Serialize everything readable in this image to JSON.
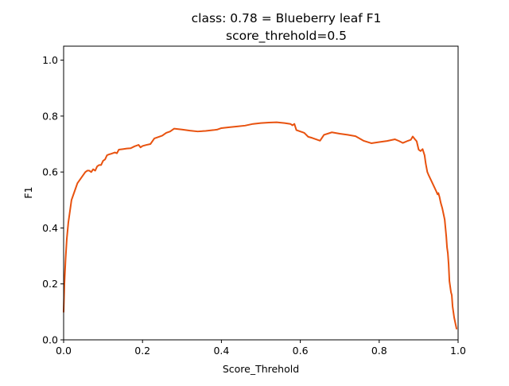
{
  "chart_data": {
    "type": "line",
    "title": "class: 0.78 = Blueberry leaf F1",
    "subtitle": "score_threhold=0.5",
    "xlabel": "Score_Threhold",
    "ylabel": "F1",
    "xlim": [
      0.0,
      1.0
    ],
    "ylim": [
      0.0,
      1.05
    ],
    "xticks": [
      "0.0",
      "0.2",
      "0.4",
      "0.6",
      "0.8",
      "1.0"
    ],
    "yticks": [
      "0.0",
      "0.2",
      "0.4",
      "0.6",
      "0.8",
      "1.0"
    ],
    "grid": false,
    "legend": "none",
    "line_color": "#e8520f",
    "series": [
      {
        "x": [
          0.0,
          0.002,
          0.005,
          0.008,
          0.012,
          0.016,
          0.02,
          0.025,
          0.03,
          0.035,
          0.04,
          0.045,
          0.05,
          0.055,
          0.06,
          0.065,
          0.07,
          0.075,
          0.08,
          0.085,
          0.09,
          0.095,
          0.1,
          0.105,
          0.11,
          0.115,
          0.12,
          0.13,
          0.135,
          0.14,
          0.15,
          0.16,
          0.17,
          0.18,
          0.19,
          0.195,
          0.2,
          0.21,
          0.22,
          0.23,
          0.24,
          0.25,
          0.26,
          0.27,
          0.28,
          0.3,
          0.32,
          0.34,
          0.36,
          0.38,
          0.39,
          0.4,
          0.42,
          0.44,
          0.46,
          0.48,
          0.5,
          0.52,
          0.54,
          0.56,
          0.575,
          0.58,
          0.585,
          0.59,
          0.6,
          0.61,
          0.62,
          0.63,
          0.64,
          0.65,
          0.66,
          0.68,
          0.7,
          0.72,
          0.74,
          0.76,
          0.78,
          0.8,
          0.82,
          0.84,
          0.85,
          0.86,
          0.87,
          0.88,
          0.885,
          0.89,
          0.895,
          0.9,
          0.905,
          0.91,
          0.915,
          0.918,
          0.922,
          0.925,
          0.93,
          0.935,
          0.94,
          0.945,
          0.948,
          0.95,
          0.953,
          0.956,
          0.96,
          0.963,
          0.966,
          0.968,
          0.97,
          0.972,
          0.974,
          0.976,
          0.978,
          0.98,
          0.982,
          0.984,
          0.986,
          0.988,
          0.99,
          0.993,
          0.996
        ],
        "y": [
          0.1,
          0.2,
          0.29,
          0.36,
          0.42,
          0.46,
          0.5,
          0.52,
          0.54,
          0.56,
          0.57,
          0.58,
          0.59,
          0.6,
          0.605,
          0.605,
          0.6,
          0.61,
          0.605,
          0.62,
          0.625,
          0.625,
          0.64,
          0.645,
          0.66,
          0.663,
          0.665,
          0.67,
          0.667,
          0.68,
          0.682,
          0.684,
          0.685,
          0.692,
          0.697,
          0.688,
          0.693,
          0.697,
          0.7,
          0.72,
          0.725,
          0.73,
          0.74,
          0.745,
          0.755,
          0.752,
          0.748,
          0.745,
          0.747,
          0.75,
          0.752,
          0.757,
          0.76,
          0.763,
          0.766,
          0.772,
          0.775,
          0.777,
          0.778,
          0.775,
          0.772,
          0.767,
          0.772,
          0.75,
          0.745,
          0.74,
          0.726,
          0.722,
          0.717,
          0.712,
          0.733,
          0.742,
          0.737,
          0.733,
          0.728,
          0.712,
          0.703,
          0.707,
          0.711,
          0.717,
          0.711,
          0.704,
          0.71,
          0.715,
          0.727,
          0.718,
          0.71,
          0.68,
          0.675,
          0.682,
          0.66,
          0.63,
          0.6,
          0.59,
          0.575,
          0.56,
          0.545,
          0.53,
          0.52,
          0.525,
          0.51,
          0.49,
          0.47,
          0.45,
          0.43,
          0.4,
          0.37,
          0.33,
          0.31,
          0.27,
          0.21,
          0.19,
          0.17,
          0.16,
          0.12,
          0.1,
          0.08,
          0.06,
          0.04
        ]
      }
    ]
  }
}
